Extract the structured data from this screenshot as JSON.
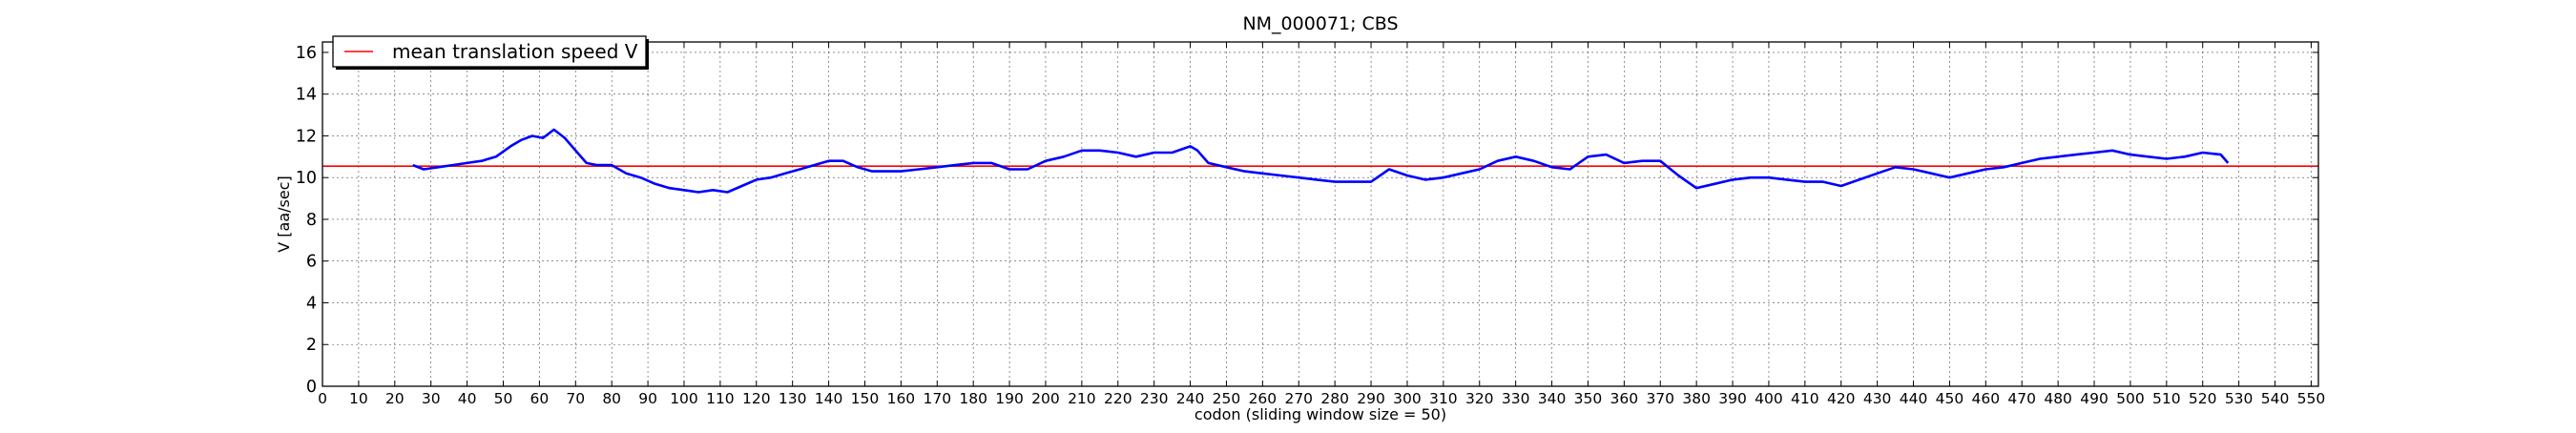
{
  "chart_data": {
    "type": "line",
    "title": "NM_000071; CBS",
    "xlabel": "codon  (sliding window size = 50)",
    "ylabel": "V [aa/sec]",
    "xlim": [
      0,
      552
    ],
    "ylim": [
      0,
      16.5
    ],
    "xticks": [
      0,
      10,
      20,
      30,
      40,
      50,
      60,
      70,
      80,
      90,
      100,
      110,
      120,
      130,
      140,
      150,
      160,
      170,
      180,
      190,
      200,
      210,
      220,
      230,
      240,
      250,
      260,
      270,
      280,
      290,
      300,
      310,
      320,
      330,
      340,
      350,
      360,
      370,
      380,
      390,
      400,
      410,
      420,
      430,
      440,
      450,
      460,
      470,
      480,
      490,
      500,
      510,
      520,
      530,
      540,
      550
    ],
    "yticks": [
      0,
      2,
      4,
      6,
      8,
      10,
      12,
      14,
      16
    ],
    "grid": true,
    "legend": {
      "position": "top-left",
      "entries": [
        "mean translation speed V"
      ]
    },
    "colors": {
      "series": "#0000ff",
      "mean_line": "#ff0000"
    },
    "mean_line": {
      "name": "mean translation speed V",
      "y": 10.55
    },
    "series": [
      {
        "x": [
          25,
          28,
          32,
          36,
          40,
          44,
          48,
          52,
          55,
          58,
          61,
          64,
          67,
          70,
          73,
          76,
          80,
          84,
          88,
          92,
          96,
          100,
          104,
          108,
          112,
          116,
          120,
          124,
          128,
          132,
          136,
          140,
          144,
          148,
          152,
          156,
          160,
          165,
          170,
          175,
          180,
          185,
          190,
          195,
          200,
          205,
          210,
          215,
          220,
          225,
          230,
          235,
          240,
          242,
          245,
          250,
          255,
          260,
          265,
          270,
          275,
          280,
          285,
          290,
          295,
          300,
          305,
          310,
          315,
          320,
          325,
          330,
          335,
          340,
          345,
          350,
          355,
          360,
          365,
          370,
          375,
          380,
          385,
          390,
          395,
          400,
          405,
          410,
          415,
          420,
          425,
          430,
          435,
          440,
          445,
          450,
          455,
          460,
          465,
          470,
          475,
          480,
          485,
          490,
          495,
          500,
          505,
          510,
          515,
          520,
          525,
          527
        ],
        "values": [
          10.6,
          10.4,
          10.5,
          10.6,
          10.7,
          10.8,
          11.0,
          11.5,
          11.8,
          12.0,
          11.9,
          12.3,
          11.9,
          11.3,
          10.7,
          10.6,
          10.6,
          10.2,
          10.0,
          9.7,
          9.5,
          9.4,
          9.3,
          9.4,
          9.3,
          9.6,
          9.9,
          10.0,
          10.2,
          10.4,
          10.6,
          10.8,
          10.8,
          10.5,
          10.3,
          10.3,
          10.3,
          10.4,
          10.5,
          10.6,
          10.7,
          10.7,
          10.4,
          10.4,
          10.8,
          11.0,
          11.3,
          11.3,
          11.2,
          11.0,
          11.2,
          11.2,
          11.5,
          11.3,
          10.7,
          10.5,
          10.3,
          10.2,
          10.1,
          10.0,
          9.9,
          9.8,
          9.8,
          9.8,
          10.4,
          10.1,
          9.9,
          10.0,
          10.2,
          10.4,
          10.8,
          11.0,
          10.8,
          10.5,
          10.4,
          11.0,
          11.1,
          10.7,
          10.8,
          10.8,
          10.1,
          9.5,
          9.7,
          9.9,
          10.0,
          10.0,
          9.9,
          9.8,
          9.8,
          9.6,
          9.9,
          10.2,
          10.5,
          10.4,
          10.2,
          10.0,
          10.2,
          10.4,
          10.5,
          10.7,
          10.9,
          11.0,
          11.1,
          11.2,
          11.3,
          11.1,
          11.0,
          10.9,
          11.0,
          11.2,
          11.1,
          10.7
        ]
      }
    ]
  }
}
